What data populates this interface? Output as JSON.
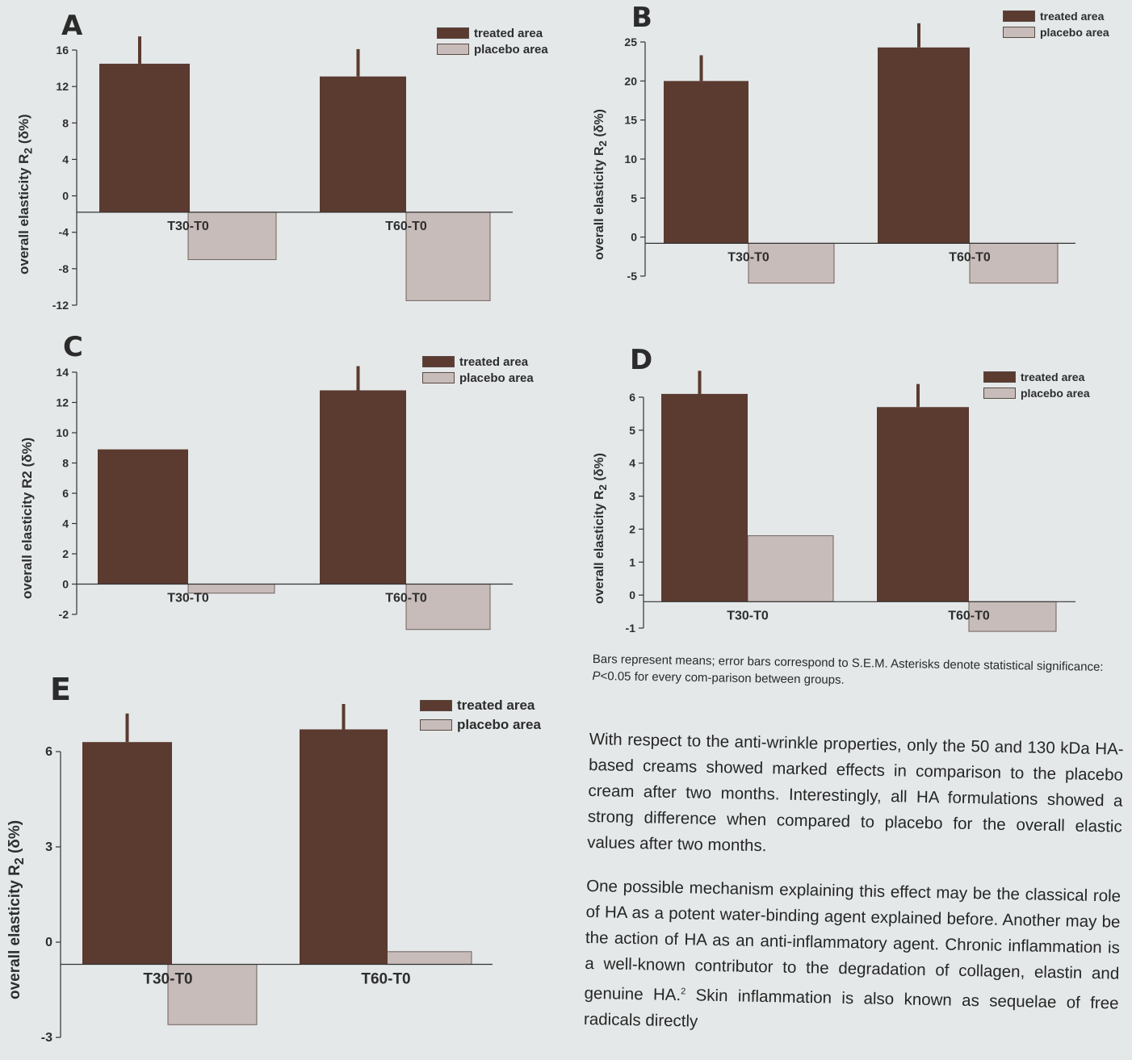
{
  "colors": {
    "treated": "#5b3a30",
    "placebo": "#c7bcb9",
    "axis": "#333333",
    "page": "#e4e8e8"
  },
  "legend": {
    "treated": "treated area",
    "placebo": "placebo area"
  },
  "chart_data": [
    {
      "id": "A",
      "type": "bar",
      "panel_label": "A",
      "categories": [
        "T30-T0",
        "T60-T0"
      ],
      "series": [
        {
          "name": "treated area",
          "values": [
            14.5,
            13.1
          ],
          "error": [
            3,
            3
          ]
        },
        {
          "name": "placebo area",
          "values": [
            -7.0,
            -11.5
          ]
        }
      ],
      "ylabel_main": "overall elasticity R",
      "ylabel_sub": "2",
      "ylabel_tail": " (δ%)",
      "ylim": [
        -12,
        16
      ],
      "yticks": [
        -12,
        -8,
        -4,
        0,
        4,
        8,
        12,
        16
      ],
      "baseline": -1.8
    },
    {
      "id": "B",
      "type": "bar",
      "panel_label": "B",
      "categories": [
        "T30-T0",
        "T60-T0"
      ],
      "series": [
        {
          "name": "treated area",
          "values": [
            20,
            24.3
          ],
          "error": [
            3.3,
            3.1
          ]
        },
        {
          "name": "placebo area",
          "values": [
            -5.9,
            -5.9
          ]
        }
      ],
      "ylabel_main": "overall elasticity R",
      "ylabel_sub": "2",
      "ylabel_tail": " (δ%)",
      "ylim": [
        -5,
        25
      ],
      "yticks": [
        -5,
        0,
        5,
        10,
        15,
        20,
        25
      ],
      "baseline": -0.8
    },
    {
      "id": "C",
      "type": "bar",
      "panel_label": "C",
      "categories": [
        "T30-T0",
        "T60-T0"
      ],
      "series": [
        {
          "name": "treated area",
          "values": [
            8.9,
            12.8
          ],
          "error": [
            0,
            1.6
          ]
        },
        {
          "name": "placebo area",
          "values": [
            -0.6,
            -3.0
          ]
        }
      ],
      "ylabel_main": "overall elasticity R2 (δ%)",
      "ylabel_sub": "",
      "ylabel_tail": "",
      "ylim": [
        -2,
        14
      ],
      "yticks": [
        -2,
        0,
        2,
        4,
        6,
        8,
        10,
        12,
        14
      ],
      "baseline": 0
    },
    {
      "id": "D",
      "type": "bar",
      "panel_label": "D",
      "categories": [
        "T30-T0",
        "T60-T0"
      ],
      "series": [
        {
          "name": "treated area",
          "values": [
            6.1,
            5.7
          ],
          "error": [
            0.7,
            0.7
          ]
        },
        {
          "name": "placebo area",
          "values": [
            1.8,
            -1.1
          ]
        }
      ],
      "ylabel_main": "overall elasticity R",
      "ylabel_sub": "2",
      "ylabel_tail": " (δ%)",
      "ylim": [
        -1,
        6
      ],
      "yticks": [
        -1,
        0,
        1,
        2,
        3,
        4,
        5,
        6
      ],
      "baseline": -0.2
    },
    {
      "id": "E",
      "type": "bar",
      "panel_label": "E",
      "categories": [
        "T30-T0",
        "T60-T0"
      ],
      "series": [
        {
          "name": "treated area",
          "values": [
            6.3,
            6.7
          ],
          "error": [
            0.9,
            0.8
          ]
        },
        {
          "name": "placebo area",
          "values": [
            -2.6,
            -0.3
          ]
        }
      ],
      "ylabel_main": "overall elasticity R",
      "ylabel_sub": "2",
      "ylabel_tail": " (δ%)",
      "ylim": [
        -3,
        6
      ],
      "yticks": [
        -3,
        0,
        3,
        6
      ],
      "baseline": -0.7
    }
  ],
  "caption": {
    "part1": "Bars represent means; error bars correspond to S.E.M. Asterisks denote statistical significance: ",
    "p": "P",
    "part2": "<0.05 for every com-parison between groups."
  },
  "body": {
    "para1": "With respect to the anti-wrinkle properties, only the 50 and 130 kDa HA-based creams showed marked effects in comparison to the placebo cream after two months. Interestingly, all HA formulations showed a strong difference when compared to placebo for the overall elastic values after two months.",
    "para2_a": "One possible mechanism explaining this effect may be the classical role of HA as a potent water-binding agent explained before. Another may be the action of HA as an anti-inflammatory agent. Chronic inflammation is a well-known contributor to the degradation of collagen, elastin and genuine HA.",
    "para2_sup": "2",
    "para2_b": " Skin inflammation is also known as sequelae of free radicals directly"
  }
}
